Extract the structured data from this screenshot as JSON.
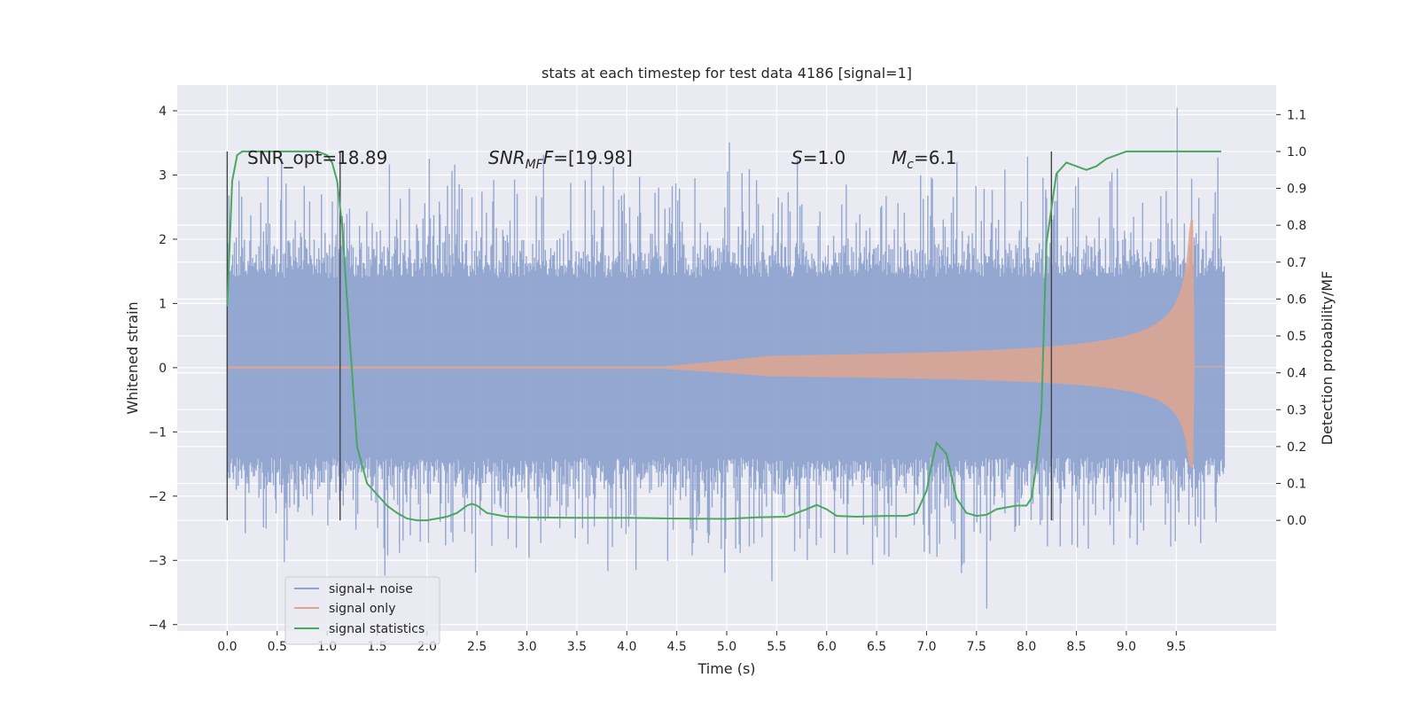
{
  "chart_data": {
    "type": "line",
    "title": "stats at each timestep for test data 4186 [signal=1]",
    "xlabel": "Time (s)",
    "ylabel": "Whitened strain",
    "ylabel_right": "Detection probability/MF",
    "xlim": [
      -0.5,
      10.5
    ],
    "ylim": [
      -4.1,
      4.4
    ],
    "ylim_right": [
      -0.3,
      1.18
    ],
    "x_ticks": [
      "0.0",
      "0.5",
      "1.0",
      "1.5",
      "2.0",
      "2.5",
      "3.0",
      "3.5",
      "4.0",
      "4.5",
      "5.0",
      "5.5",
      "6.0",
      "6.5",
      "7.0",
      "7.5",
      "8.0",
      "8.5",
      "9.0",
      "9.5"
    ],
    "y_ticks": [
      "4",
      "3",
      "2",
      "1",
      "0",
      "−1",
      "−2",
      "−3",
      "−4"
    ],
    "y_right_ticks": [
      "1.1",
      "1.0",
      "0.9",
      "0.8",
      "0.7",
      "0.6",
      "0.5",
      "0.4",
      "0.3",
      "0.2",
      "0.1",
      "0.0"
    ],
    "grid": true,
    "legend_position": "lower-left",
    "annotations": {
      "snr_opt": "SNR_opt=18.89",
      "snr_mf_main": "SNR",
      "snr_mf_sub": "MF",
      "snr_mf_rest": "=[19.98]",
      "s_var": "S",
      "s_rest": "=1.0",
      "mc_var": "M",
      "mc_sub": "c",
      "mc_rest": "=6.1"
    },
    "vertical_lines_x": [
      0.0,
      1.13,
      8.25
    ],
    "series": [
      {
        "name": "signal+ noise",
        "color": "#8fa3cf",
        "description_values": {
          "x_range": [
            0.0,
            9.98
          ],
          "typical_envelope": [
            -1.4,
            1.4
          ],
          "peak_max": 4.05,
          "peak_min": -3.75
        }
      },
      {
        "name": "signal only",
        "color": "#e0a590",
        "description_values": {
          "x_range": [
            0.0,
            9.98
          ],
          "chirp_peak_time": 9.68,
          "chirp_peak_max": 2.3,
          "chirp_peak_min": -1.55
        }
      },
      {
        "name": "signal statistics",
        "color": "#4aa661",
        "axis": "right",
        "x": [
          0.0,
          0.05,
          0.1,
          0.15,
          0.2,
          0.3,
          0.5,
          0.7,
          0.9,
          1.0,
          1.05,
          1.1,
          1.15,
          1.2,
          1.3,
          1.4,
          1.5,
          1.6,
          1.7,
          1.8,
          1.9,
          2.0,
          2.1,
          2.2,
          2.3,
          2.4,
          2.45,
          2.5,
          2.6,
          2.8,
          3.0,
          3.5,
          4.0,
          4.5,
          5.0,
          5.3,
          5.6,
          5.8,
          5.9,
          6.0,
          6.1,
          6.3,
          6.6,
          6.8,
          6.9,
          7.0,
          7.05,
          7.1,
          7.2,
          7.3,
          7.4,
          7.5,
          7.6,
          7.7,
          7.9,
          8.0,
          8.05,
          8.1,
          8.15,
          8.2,
          8.3,
          8.4,
          8.5,
          8.6,
          8.7,
          8.8,
          8.9,
          9.0,
          9.2,
          9.5,
          9.7,
          9.95
        ],
        "values": [
          0.58,
          0.92,
          0.99,
          1.0,
          1.0,
          1.0,
          1.0,
          1.0,
          1.0,
          0.99,
          0.97,
          0.92,
          0.8,
          0.6,
          0.2,
          0.1,
          0.07,
          0.04,
          0.02,
          0.005,
          0.0,
          0.0,
          0.005,
          0.01,
          0.02,
          0.04,
          0.045,
          0.04,
          0.02,
          0.01,
          0.008,
          0.007,
          0.007,
          0.005,
          0.004,
          0.008,
          0.01,
          0.03,
          0.042,
          0.03,
          0.012,
          0.01,
          0.012,
          0.012,
          0.02,
          0.08,
          0.15,
          0.21,
          0.18,
          0.06,
          0.02,
          0.012,
          0.015,
          0.03,
          0.04,
          0.04,
          0.06,
          0.15,
          0.3,
          0.75,
          0.94,
          0.97,
          0.96,
          0.95,
          0.96,
          0.98,
          0.99,
          1.0,
          1.0,
          1.0,
          1.0,
          1.0
        ]
      }
    ]
  }
}
